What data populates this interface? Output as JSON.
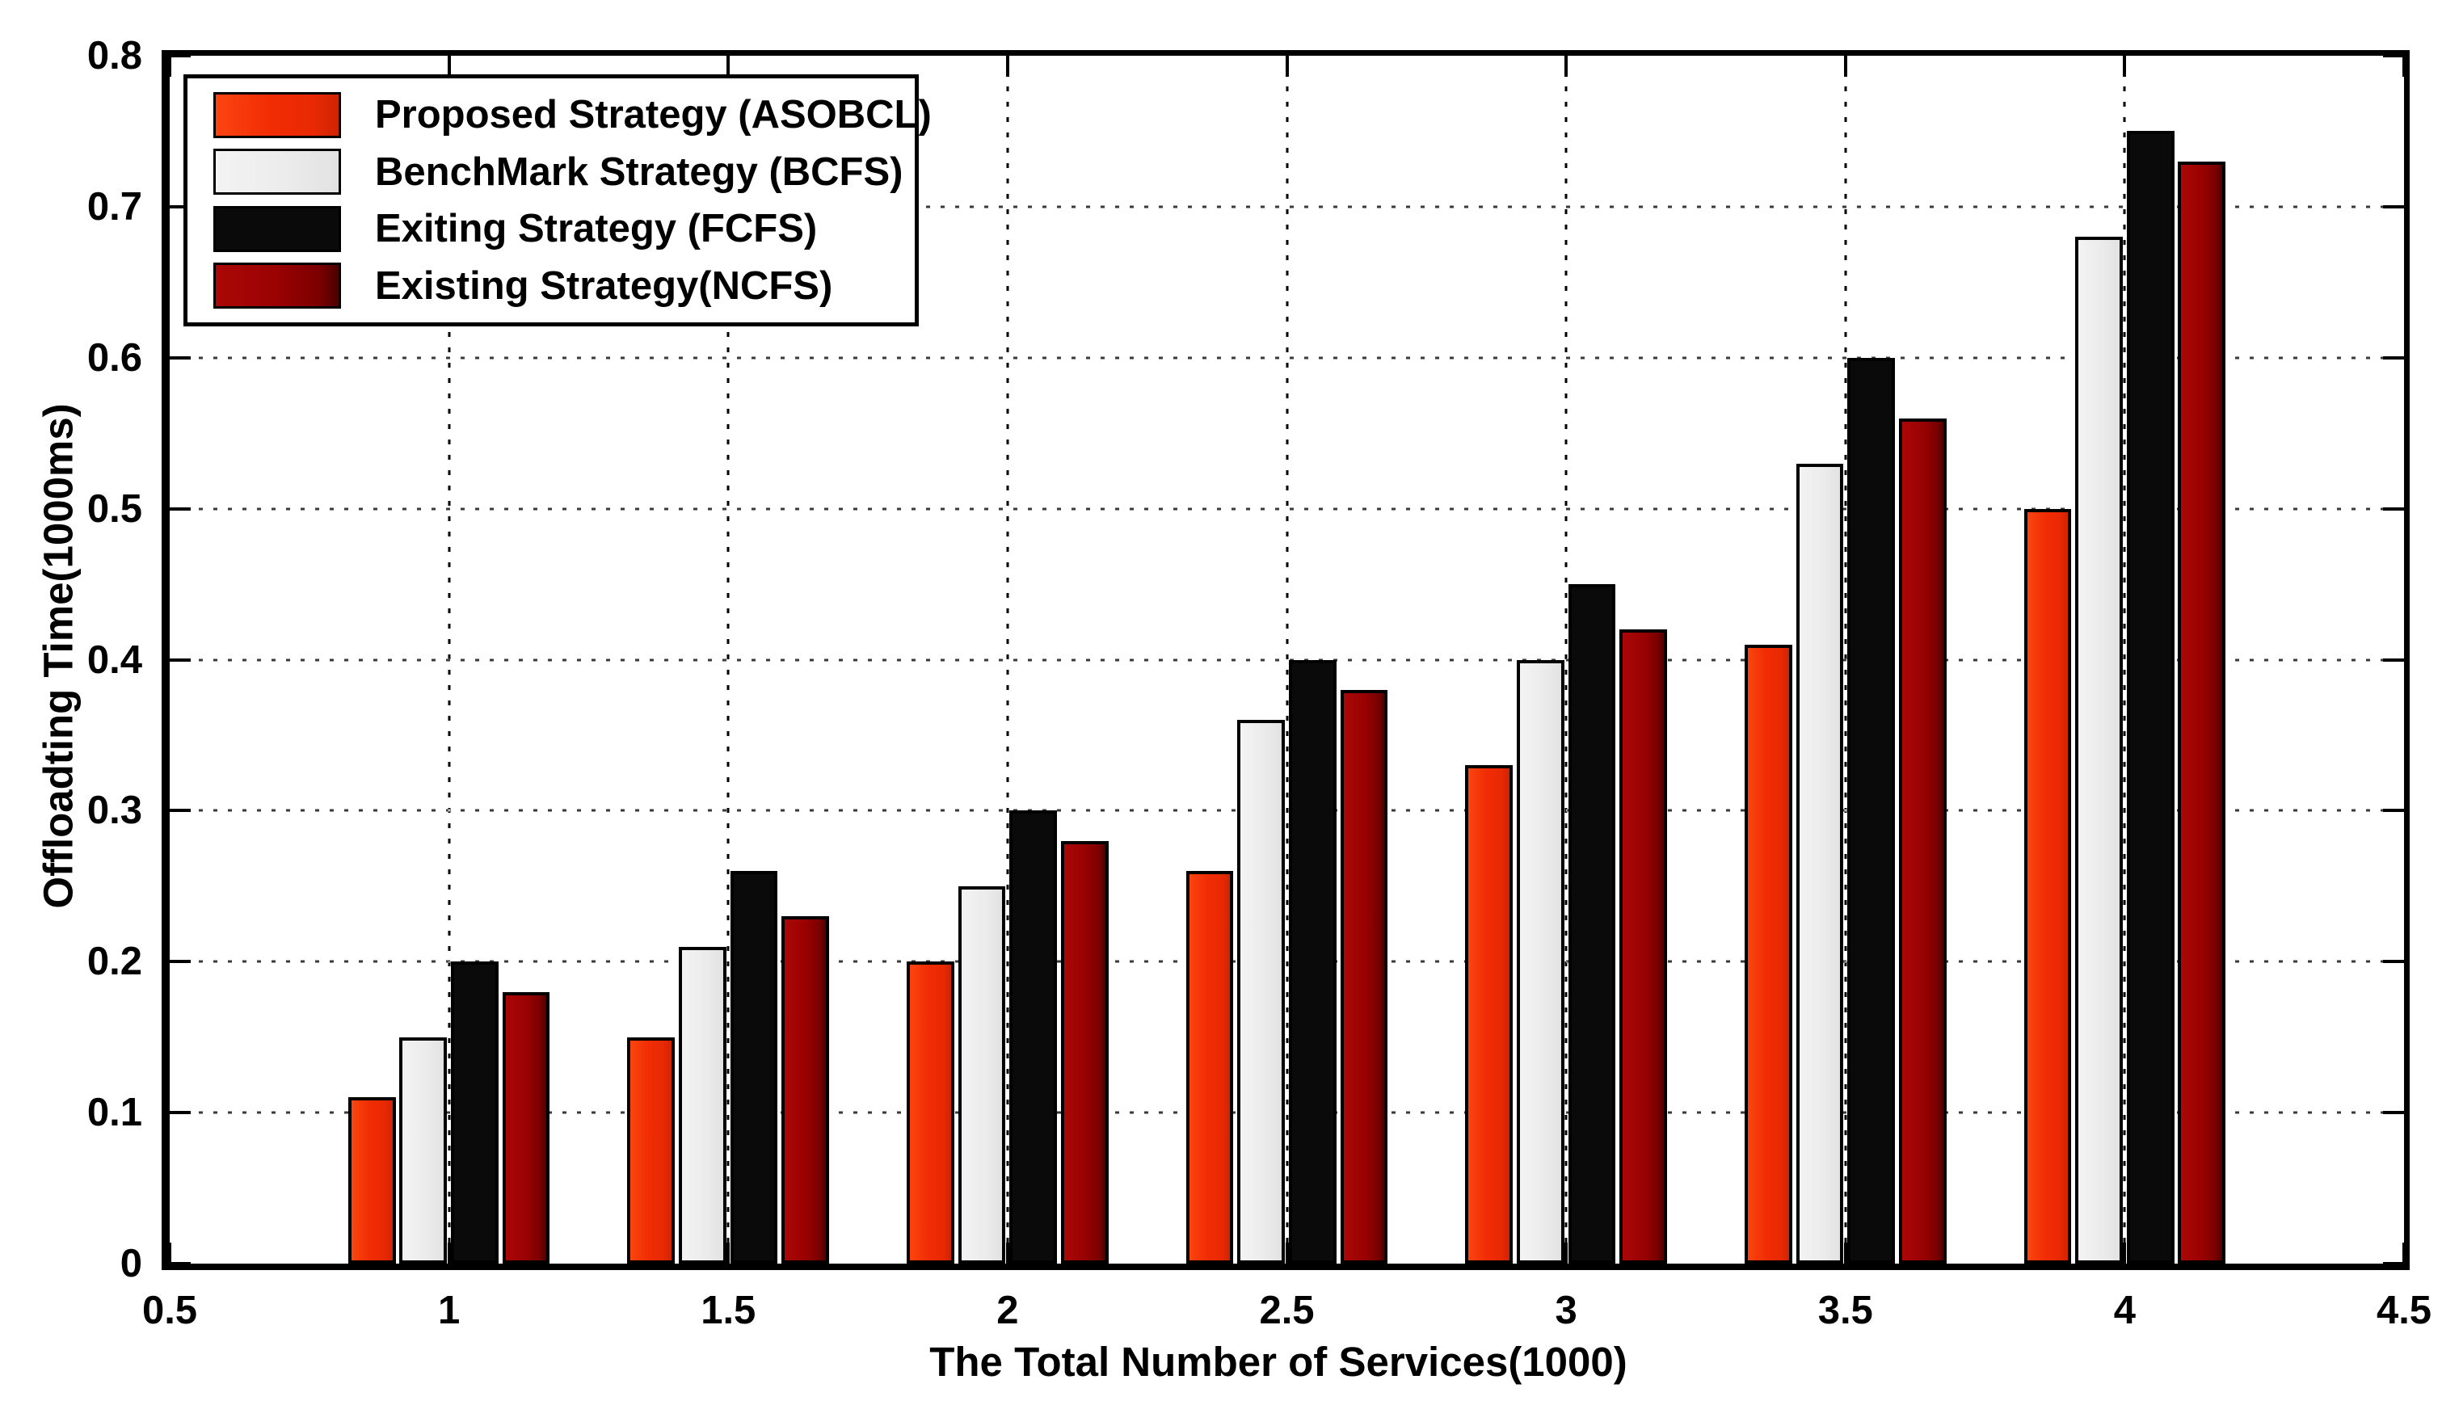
{
  "figure": {
    "background": "#ffffff",
    "text_color": "#000000"
  },
  "chart_data": {
    "type": "bar",
    "title": "",
    "xlabel": "The Total Number of Services(1000)",
    "ylabel": "Offloadting Time(1000ms)",
    "xlim": [
      0.5,
      4.5
    ],
    "ylim": [
      0,
      0.8
    ],
    "grid": true,
    "legend_position": "top-left",
    "x": [
      1,
      1.5,
      2,
      2.5,
      3,
      3.5,
      4
    ],
    "x_ticks": [
      0.5,
      1,
      1.5,
      2,
      2.5,
      3,
      3.5,
      4,
      4.5
    ],
    "x_tick_labels": [
      "0.5",
      "1",
      "1.5",
      "2",
      "2.5",
      "3",
      "3.5",
      "4",
      "4.5"
    ],
    "y_ticks": [
      0,
      0.1,
      0.2,
      0.3,
      0.4,
      0.5,
      0.6,
      0.7,
      0.8
    ],
    "y_tick_labels": [
      "0",
      "0.1",
      "0.2",
      "0.3",
      "0.4",
      "0.5",
      "0.6",
      "0.7",
      "0.8"
    ],
    "series": [
      {
        "name": "Proposed Strategy (ASOBCL)",
        "color": "#f12c04",
        "values": [
          0.11,
          0.15,
          0.2,
          0.26,
          0.33,
          0.41,
          0.5
        ]
      },
      {
        "name": "BenchMark Strategy (BCFS)",
        "color": "#ebebeb",
        "values": [
          0.15,
          0.21,
          0.25,
          0.36,
          0.4,
          0.53,
          0.68
        ]
      },
      {
        "name": "Exiting Strategy (FCFS)",
        "color": "#0a0a0a",
        "values": [
          0.2,
          0.26,
          0.3,
          0.4,
          0.45,
          0.6,
          0.75
        ]
      },
      {
        "name": "Existing Strategy(NCFS)",
        "color": "#9a0202",
        "values": [
          0.18,
          0.23,
          0.28,
          0.38,
          0.42,
          0.56,
          0.73
        ]
      }
    ]
  }
}
